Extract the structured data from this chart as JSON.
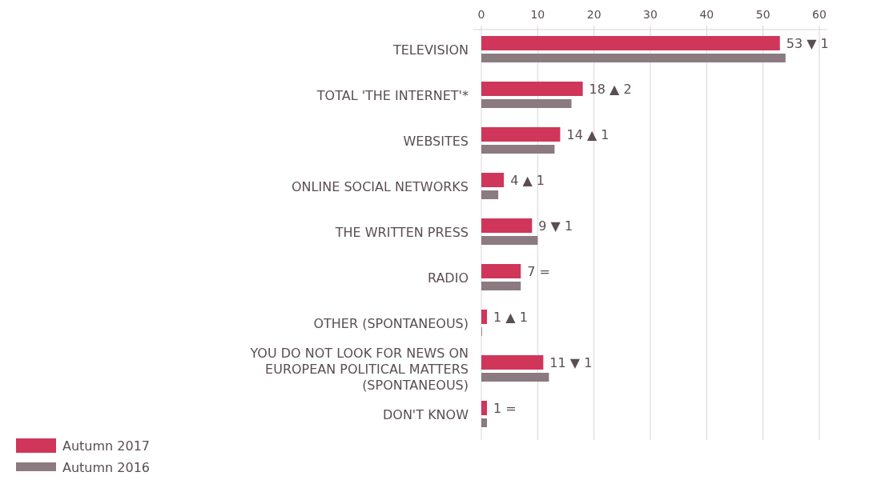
{
  "chart_data": {
    "type": "bar",
    "orientation": "horizontal",
    "categories": [
      "TELEVISION",
      "TOTAL 'THE INTERNET'*",
      "WEBSITES",
      "ONLINE SOCIAL NETWORKS",
      "THE WRITTEN PRESS",
      "RADIO",
      "OTHER (SPONTANEOUS)",
      "YOU DO NOT LOOK FOR NEWS ON EUROPEAN POLITICAL MATTERS (SPONTANEOUS)",
      "DON'T KNOW"
    ],
    "series": [
      {
        "name": "Autumn 2017",
        "color": "#d0365a",
        "values": [
          53,
          18,
          14,
          4,
          9,
          7,
          1,
          11,
          1
        ],
        "value_labels": [
          "53 ▼ 1",
          "18 ▲ 2",
          "14 ▲ 1",
          "4 ▲ 1",
          "9 ▼ 1",
          "7 =",
          "1 ▲ 1",
          "11 ▼ 1",
          "1 ="
        ]
      },
      {
        "name": "Autumn 2016",
        "color": "#8b7a80",
        "values": [
          54,
          16,
          13,
          3,
          10,
          7,
          0,
          12,
          1
        ]
      }
    ],
    "xlim": [
      0,
      60
    ],
    "xticks": [
      0,
      10,
      20,
      30,
      40,
      50,
      60
    ],
    "grid": "x",
    "legend": "bottom left"
  }
}
